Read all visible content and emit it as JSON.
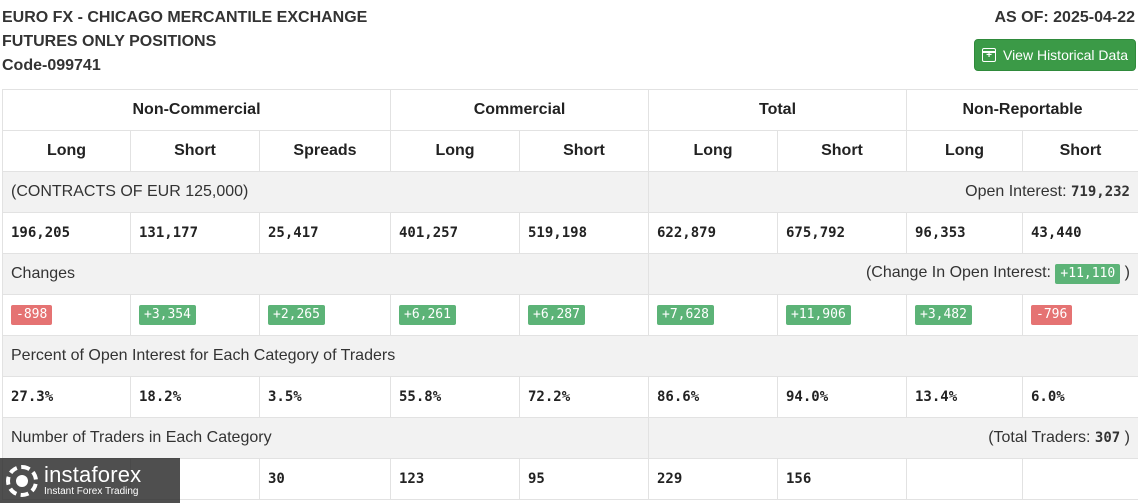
{
  "header": {
    "title_line1": "EURO FX - CHICAGO MERCANTILE EXCHANGE",
    "title_line2": "FUTURES ONLY POSITIONS",
    "code": "Code-099741",
    "as_of": "AS OF: 2025-04-22",
    "history_button": "View Historical Data"
  },
  "groups": [
    "Non-Commercial",
    "Commercial",
    "Total",
    "Non-Reportable"
  ],
  "columns": [
    "Long",
    "Short",
    "Spreads",
    "Long",
    "Short",
    "Long",
    "Short",
    "Long",
    "Short"
  ],
  "contracts_label": "(CONTRACTS OF EUR 125,000)",
  "open_interest_label": "Open Interest:",
  "open_interest_value": "719,232",
  "positions": [
    "196,205",
    "131,177",
    "25,417",
    "401,257",
    "519,198",
    "622,879",
    "675,792",
    "96,353",
    "43,440"
  ],
  "changes_label": "Changes",
  "change_oi_label": "(Change In Open Interest:",
  "change_oi_value": "+11,110",
  "change_oi_close": ")",
  "changes": [
    "-898",
    "+3,354",
    "+2,265",
    "+6,261",
    "+6,287",
    "+7,628",
    "+11,906",
    "+3,482",
    "-796"
  ],
  "percent_label": "Percent of Open Interest for Each Category of Traders",
  "percents": [
    "27.3%",
    "18.2%",
    "3.5%",
    "55.8%",
    "72.2%",
    "86.6%",
    "94.0%",
    "13.4%",
    "6.0%"
  ],
  "traders_label": "Number of Traders in Each Category",
  "total_traders_label": "(Total Traders:",
  "total_traders_value": "307",
  "total_traders_close": ")",
  "traders": [
    "",
    "",
    "30",
    "123",
    "95",
    "229",
    "156",
    "",
    ""
  ],
  "watermark": {
    "brand": "instaforex",
    "tagline": "Instant Forex Trading"
  },
  "colors": {
    "positive": "#5cb377",
    "negative": "#e57373",
    "button": "#3b9a47"
  }
}
